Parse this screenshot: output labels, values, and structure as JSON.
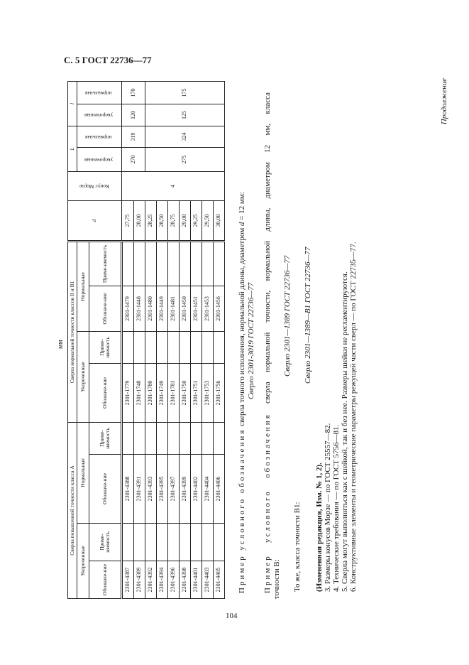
{
  "header": {
    "page_title": "С. 5 ГОСТ 22736—77",
    "page_number": "104"
  },
  "continuation": "Продолжение",
  "units": "мм",
  "table": {
    "group_a": "Сверла повышенной точности класса А",
    "group_b": "Сверла нормальной точности классов В и В1",
    "short": "Укороченные",
    "normal": "Нормальные",
    "designation": "Обозначе-ние",
    "applicability": "Приме-няемость",
    "col_d": "d",
    "col_morse": "Конус Морзе",
    "col_L": "L",
    "col_l": "l",
    "sub_short": "укороченная",
    "sub_normal": "нормальная",
    "rows": [
      {
        "a_short": "2301-4387",
        "a_norm": "2301-4388",
        "b_short": "2301-1779",
        "b_norm": "2301-1479",
        "d": "27,75"
      },
      {
        "a_short": "2301-4389",
        "a_norm": "2301-4391",
        "b_short": "2301-1748",
        "b_norm": "2301-1448",
        "d": "28,00"
      },
      {
        "a_short": "2301-4392",
        "a_norm": "2301-4393",
        "b_short": "2301-1780",
        "b_norm": "2301-1480",
        "d": "28,25"
      },
      {
        "a_short": "2301-4394",
        "a_norm": "2301-4395",
        "b_short": "2301-1749",
        "b_norm": "2301-1449",
        "d": "28,50"
      },
      {
        "a_short": "2301-4396",
        "a_norm": "2301-4397",
        "b_short": "2301-1781",
        "b_norm": "2301-1481",
        "d": "28,75"
      },
      {
        "a_short": "2301-4398",
        "a_norm": "2301-4399",
        "b_short": "2301-1750",
        "b_norm": "2301-1450",
        "d": "29,00"
      },
      {
        "a_short": "2301-4401",
        "a_norm": "2301-4402",
        "b_short": "2301-1751",
        "b_norm": "2301-1451",
        "d": "29,25"
      },
      {
        "a_short": "2301-4403",
        "a_norm": "2301-4404",
        "b_short": "2301-1753",
        "b_norm": "2301-1453",
        "d": "29,50"
      },
      {
        "a_short": "2301-4405",
        "a_norm": "2301-4406",
        "b_short": "2301-1756",
        "b_norm": "2301-1456",
        "d": "30,00"
      }
    ],
    "morse": "4",
    "L_short": [
      "270",
      "275"
    ],
    "L_norm": [
      "319",
      "324"
    ],
    "l_short": [
      "120",
      "125"
    ],
    "l_norm": [
      "170",
      "175"
    ]
  },
  "text": {
    "ex1_spaced": "Пример условного обозначения",
    "ex1_rest": " сверла точного исполнения, нормальной длины, диаметром ",
    "ex1_d": "d",
    "ex1_end": " = 12 мм:",
    "ex1_code": "Сверло 2301-3019 ГОСТ 22736—77",
    "ex2_spaced": "Пример условного обозначения",
    "ex2_rest": " сверла нормальной точности, нормальной длины, диаметром 12 мм, класса",
    "ex2_cont": "точности В:",
    "ex2_code": "Сверло 2301—1389 ГОСТ 22736—77",
    "ex3": "То же, класса точности В1:",
    "ex3_code": "Сверло 2301—1389—В1 ГОСТ 22736—77",
    "revision": "(Измененная редакция, Изм. № 1, 2).",
    "notes": [
      "3. Размеры конусов Морзе — по ГОСТ 25557—82.",
      "4. Технические требования — по ГОСТ 5756—81.",
      "5. Сверла могут выполняться как с шейкой, так и без нее. Размеры шейки не регламентируются.",
      "6. Конструктивные элементы и геометрические параметры режущей части сверл — по ГОСТ 22735—77."
    ]
  }
}
